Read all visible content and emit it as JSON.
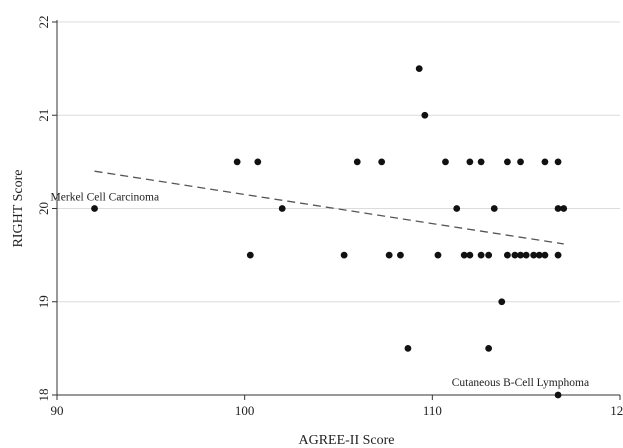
{
  "chart_data": {
    "type": "scatter",
    "xlabel": "AGREE-II Score",
    "ylabel": "RIGHT Score",
    "xlim": [
      90,
      120
    ],
    "ylim": [
      18,
      22
    ],
    "xticks": [
      90,
      100,
      110,
      120
    ],
    "yticks": [
      18,
      19,
      20,
      21,
      22
    ],
    "grid": true,
    "series": [
      {
        "points": [
          [
            92,
            20
          ],
          [
            99.6,
            20.5
          ],
          [
            100.3,
            19.5
          ],
          [
            100.7,
            20.5
          ],
          [
            102,
            20
          ],
          [
            105.3,
            19.5
          ],
          [
            106,
            20.5
          ],
          [
            107.3,
            20.5
          ],
          [
            107.7,
            19.5
          ],
          [
            108.3,
            19.5
          ],
          [
            108.7,
            18.5
          ],
          [
            109.3,
            21.5
          ],
          [
            109.6,
            21
          ],
          [
            110.3,
            19.5
          ],
          [
            110.7,
            20.5
          ],
          [
            111.3,
            20
          ],
          [
            111.7,
            19.5
          ],
          [
            112,
            20.5
          ],
          [
            112,
            19.5
          ],
          [
            112.6,
            20.5
          ],
          [
            112.6,
            19.5
          ],
          [
            113,
            19.5
          ],
          [
            113,
            18.5
          ],
          [
            113.3,
            20
          ],
          [
            113.7,
            19
          ],
          [
            114,
            20.5
          ],
          [
            114,
            19.5
          ],
          [
            114.4,
            19.5
          ],
          [
            114.7,
            20.5
          ],
          [
            114.7,
            19.5
          ],
          [
            115,
            19.5
          ],
          [
            115.4,
            19.5
          ],
          [
            115.7,
            19.5
          ],
          [
            116,
            20.5
          ],
          [
            116,
            19.5
          ],
          [
            116.7,
            20.5
          ],
          [
            116.7,
            20
          ],
          [
            116.7,
            19.5
          ],
          [
            116.7,
            18
          ],
          [
            117,
            20
          ]
        ]
      }
    ],
    "fit_line": {
      "x": [
        92,
        117
      ],
      "y": [
        20.4,
        19.62
      ],
      "style": "dashed"
    },
    "annotations": [
      {
        "text": "Merkel Cell Carcinoma",
        "x": 92,
        "y": 20
      },
      {
        "text": "Cutaneous B-Cell Lymphoma",
        "x": 116.7,
        "y": 18
      }
    ],
    "colors": {
      "point": "#111111",
      "grid": "#dcdcdc",
      "axis": "#333333",
      "fit": "#555555"
    }
  }
}
